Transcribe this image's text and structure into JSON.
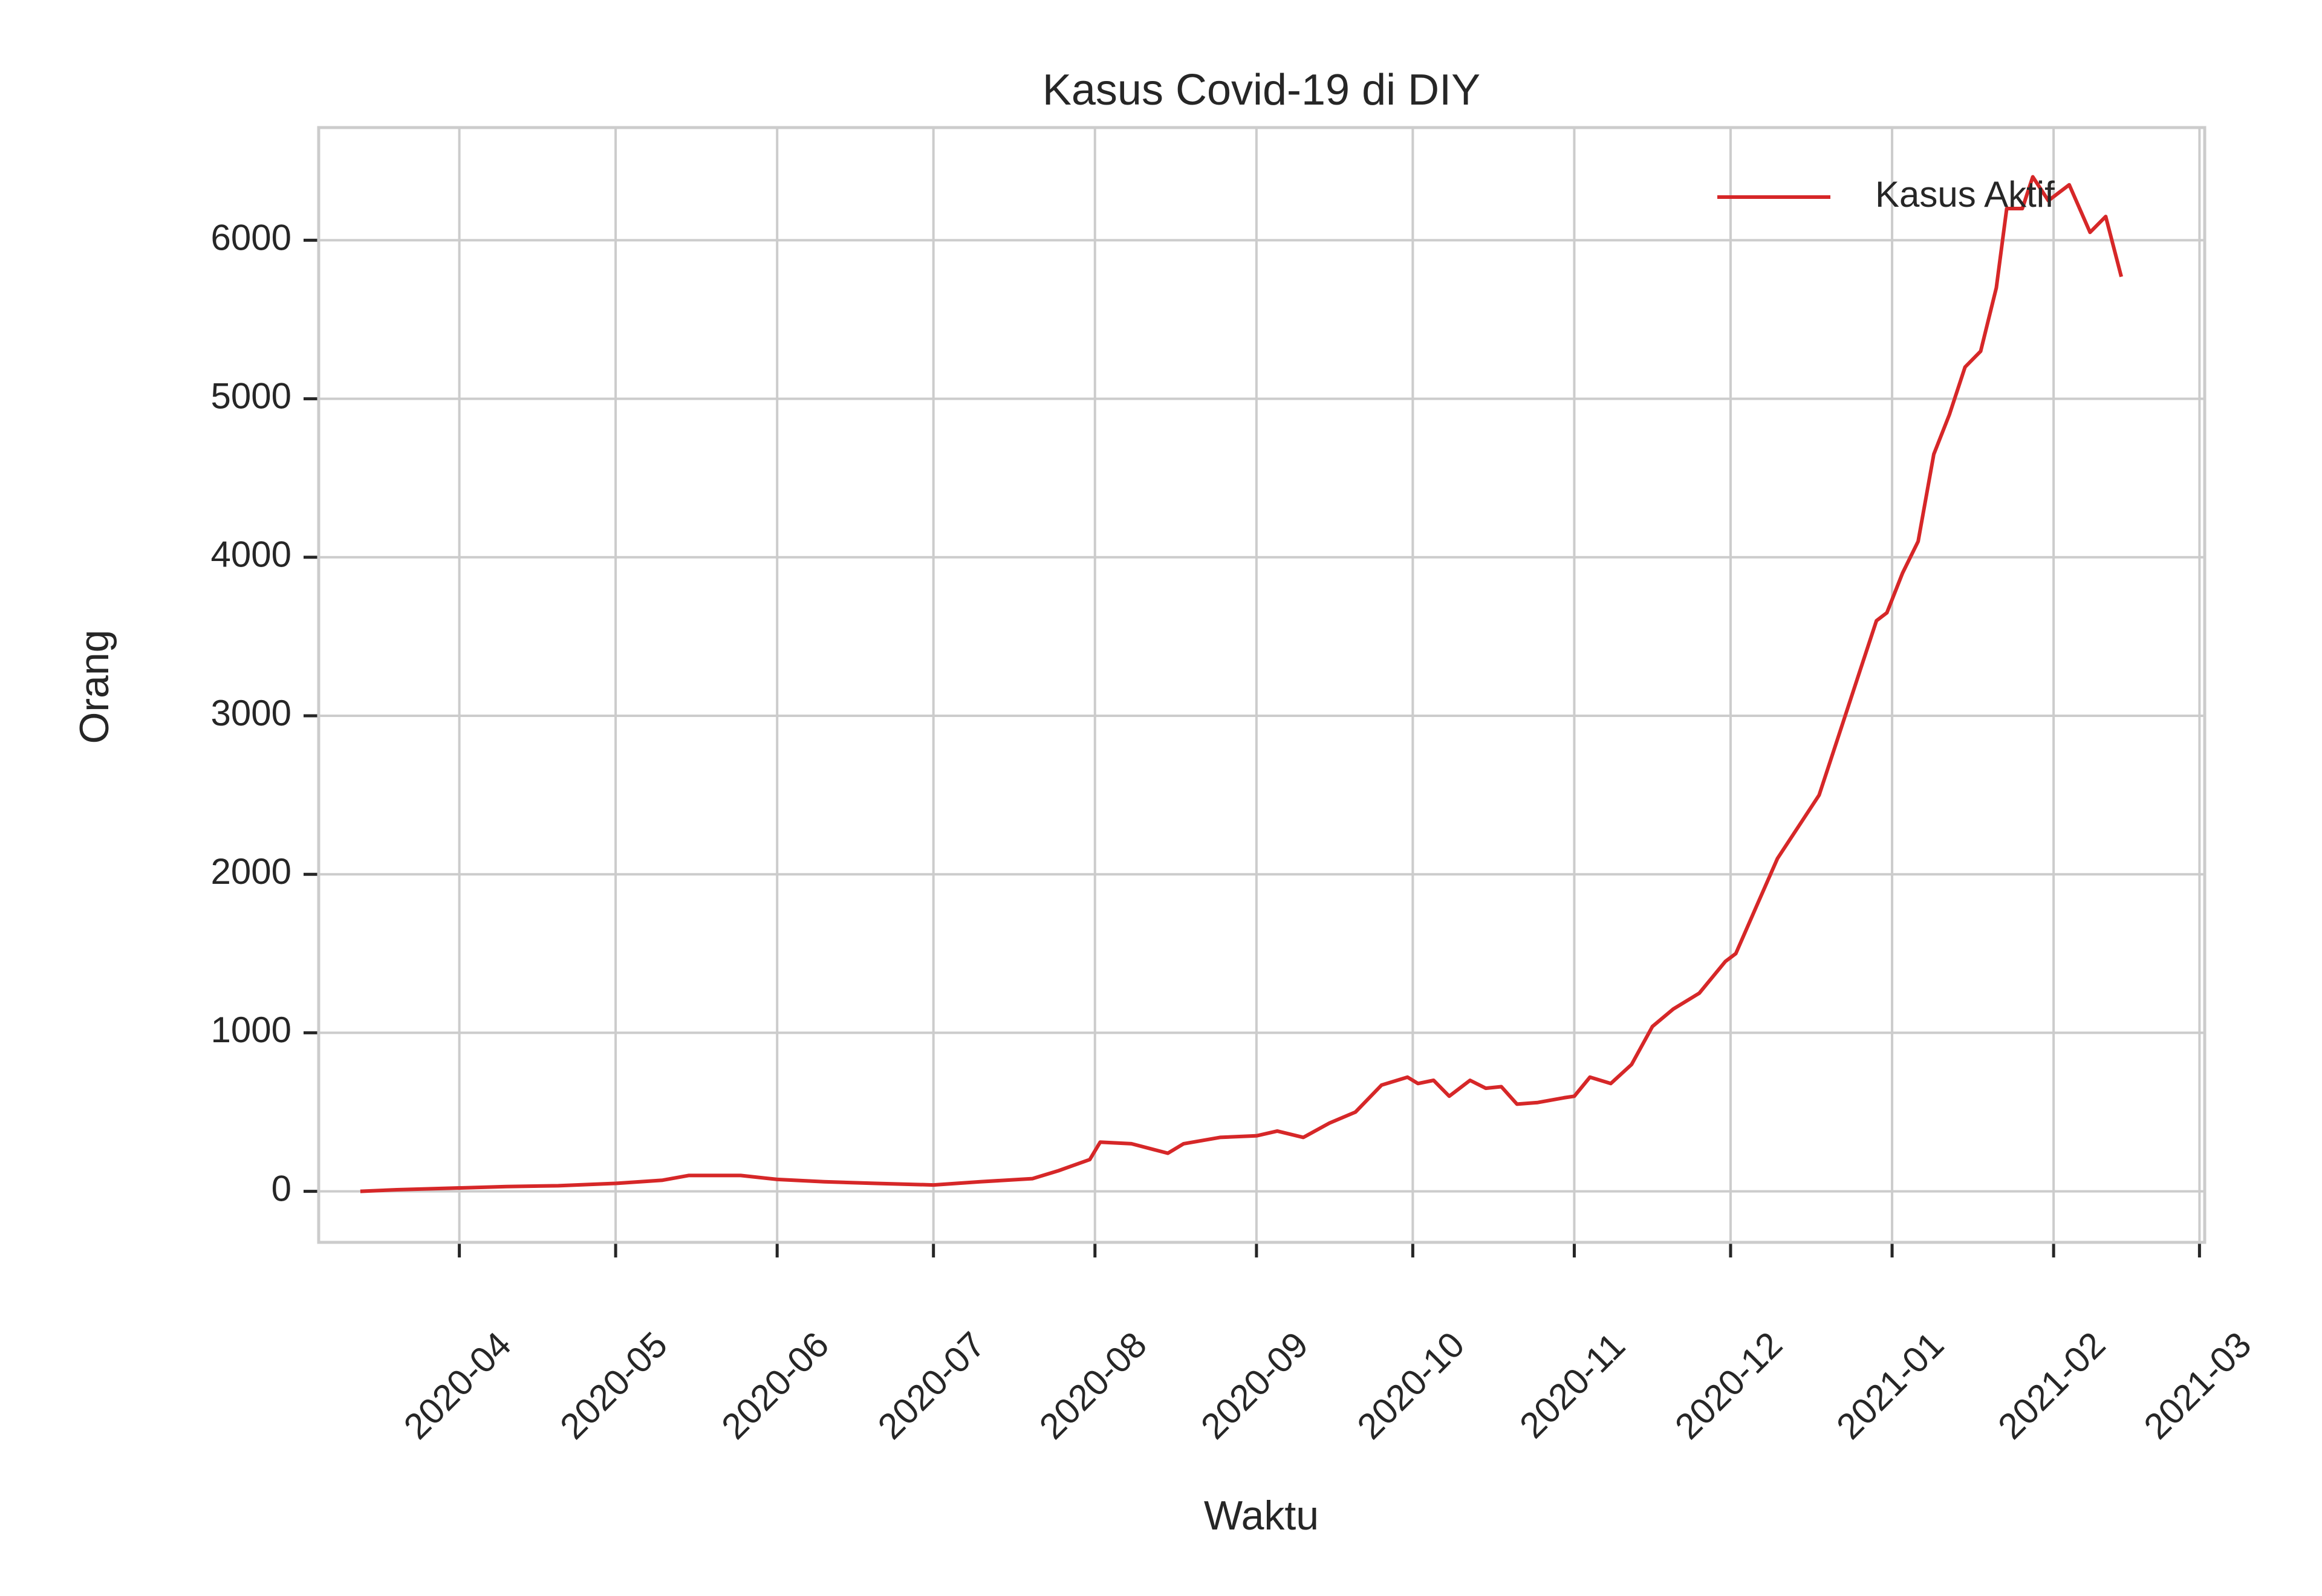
{
  "chart_data": {
    "type": "line",
    "title": "Kasus Covid-19 di DIY",
    "xlabel": "Waktu",
    "ylabel": "Orang",
    "x": [
      "2020-03-13",
      "2020-03-20",
      "2020-03-31",
      "2020-04-10",
      "2020-04-20",
      "2020-05-01",
      "2020-05-10",
      "2020-05-15",
      "2020-05-25",
      "2020-06-01",
      "2020-06-10",
      "2020-06-20",
      "2020-07-01",
      "2020-07-10",
      "2020-07-20",
      "2020-07-25",
      "2020-07-31",
      "2020-08-02",
      "2020-08-08",
      "2020-08-15",
      "2020-08-18",
      "2020-08-25",
      "2020-09-01",
      "2020-09-05",
      "2020-09-10",
      "2020-09-15",
      "2020-09-20",
      "2020-09-25",
      "2020-09-30",
      "2020-10-02",
      "2020-10-05",
      "2020-10-08",
      "2020-10-12",
      "2020-10-15",
      "2020-10-18",
      "2020-10-21",
      "2020-10-25",
      "2020-10-30",
      "2020-11-01",
      "2020-11-04",
      "2020-11-08",
      "2020-11-12",
      "2020-11-16",
      "2020-11-20",
      "2020-11-25",
      "2020-11-30",
      "2020-12-02",
      "2020-12-06",
      "2020-12-10",
      "2020-12-14",
      "2020-12-18",
      "2020-12-22",
      "2020-12-26",
      "2020-12-29",
      "2020-12-31",
      "2021-01-03",
      "2021-01-06",
      "2021-01-09",
      "2021-01-12",
      "2021-01-15",
      "2021-01-18",
      "2021-01-21",
      "2021-01-23",
      "2021-01-26",
      "2021-01-28",
      "2021-01-31",
      "2021-02-04",
      "2021-02-08",
      "2021-02-11",
      "2021-02-14"
    ],
    "series": [
      {
        "name": "Kasus Aktif",
        "color": "#d62728",
        "values": [
          0,
          10,
          20,
          30,
          35,
          50,
          70,
          100,
          100,
          75,
          60,
          50,
          40,
          60,
          80,
          130,
          200,
          310,
          300,
          240,
          300,
          340,
          350,
          380,
          340,
          430,
          500,
          670,
          720,
          680,
          700,
          600,
          700,
          650,
          660,
          550,
          560,
          590,
          600,
          720,
          680,
          800,
          1040,
          1150,
          1250,
          1450,
          1500,
          1800,
          2100,
          2300,
          2500,
          2900,
          3300,
          3600,
          3650,
          3900,
          4100,
          4650,
          4900,
          5200,
          5300,
          5700,
          6200,
          6200,
          6400,
          6250,
          6350,
          6050,
          6150,
          5770
        ]
      }
    ],
    "xlim": [
      "2020-03-05",
      "2021-03-02"
    ],
    "xticks": [
      {
        "value": "2020-04-01",
        "label": "2020-04"
      },
      {
        "value": "2020-05-01",
        "label": "2020-05"
      },
      {
        "value": "2020-06-01",
        "label": "2020-06"
      },
      {
        "value": "2020-07-01",
        "label": "2020-07"
      },
      {
        "value": "2020-08-01",
        "label": "2020-08"
      },
      {
        "value": "2020-09-01",
        "label": "2020-09"
      },
      {
        "value": "2020-10-01",
        "label": "2020-10"
      },
      {
        "value": "2020-11-01",
        "label": "2020-11"
      },
      {
        "value": "2020-12-01",
        "label": "2020-12"
      },
      {
        "value": "2021-01-01",
        "label": "2021-01"
      },
      {
        "value": "2021-02-01",
        "label": "2021-02"
      },
      {
        "value": "2021-03-01",
        "label": "2021-03"
      }
    ],
    "ylim": [
      -322,
      6711
    ],
    "yticks": [
      0,
      1000,
      2000,
      3000,
      4000,
      5000,
      6000
    ],
    "grid": true,
    "legend": "upper right"
  }
}
